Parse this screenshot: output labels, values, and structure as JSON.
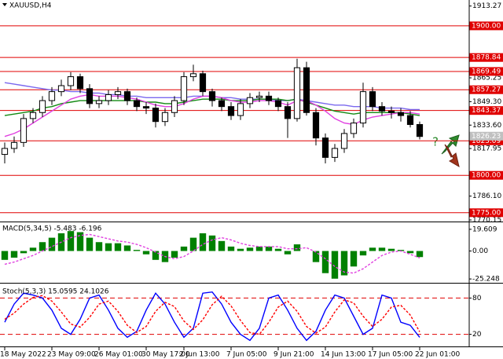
{
  "chart_data": [
    {
      "type": "candlestick",
      "title": "XAUUSD,H4",
      "categories": [
        "18 May 2022",
        null,
        null,
        null,
        null,
        "23 May 09:00",
        null,
        null,
        null,
        null,
        "26 May 01:00",
        null,
        null,
        null,
        null,
        "30 May 17:00",
        null,
        null,
        null,
        "2 Jun 13:00",
        null,
        null,
        null,
        null,
        "7 Jun 05:00",
        null,
        null,
        null,
        null,
        "9 Jun 21:00",
        null,
        null,
        null,
        null,
        "14 Jun 13:00",
        null,
        null,
        null,
        null,
        "17 Jun 05:00",
        null,
        null,
        null,
        null,
        "22 Jun 01:00"
      ],
      "open": [
        1814,
        1818,
        1822,
        1838,
        1842,
        1850,
        1856,
        1860,
        1866,
        1858,
        1848,
        1850,
        1854,
        1856,
        1850,
        1846,
        1845,
        1836,
        1842,
        1850,
        1866,
        1868,
        1856,
        1850,
        1846,
        1840,
        1848,
        1852,
        1853,
        1850,
        1846,
        1838,
        1872,
        1842,
        1825,
        1812,
        1818,
        1828,
        1835,
        1856,
        1846,
        1843,
        1842,
        1840,
        1834
      ],
      "high": [
        1822,
        1826,
        1841,
        1845,
        1853,
        1859,
        1864,
        1869,
        1868,
        1861,
        1853,
        1857,
        1859,
        1858,
        1852,
        1849,
        1848,
        1845,
        1853,
        1869,
        1874,
        1870,
        1858,
        1852,
        1849,
        1851,
        1855,
        1856,
        1856,
        1852,
        1849,
        1878,
        1876,
        1845,
        1828,
        1821,
        1831,
        1838,
        1862,
        1859,
        1849,
        1846,
        1845,
        1843,
        1836
      ],
      "low": [
        1808,
        1815,
        1819,
        1835,
        1839,
        1847,
        1853,
        1857,
        1855,
        1845,
        1845,
        1847,
        1851,
        1847,
        1843,
        1841,
        1832,
        1833,
        1839,
        1847,
        1863,
        1853,
        1846,
        1843,
        1837,
        1837,
        1845,
        1849,
        1847,
        1843,
        1825,
        1836,
        1840,
        1820,
        1808,
        1809,
        1815,
        1825,
        1832,
        1843,
        1840,
        1838,
        1836,
        1832,
        1824
      ],
      "close": [
        1818,
        1822,
        1838,
        1842,
        1850,
        1856,
        1860,
        1866,
        1858,
        1848,
        1850,
        1854,
        1856,
        1850,
        1846,
        1845,
        1836,
        1842,
        1850,
        1866,
        1868,
        1856,
        1850,
        1846,
        1840,
        1848,
        1852,
        1853,
        1850,
        1846,
        1838,
        1872,
        1842,
        1825,
        1812,
        1818,
        1828,
        1835,
        1856,
        1846,
        1843,
        1842,
        1840,
        1834,
        1826
      ],
      "series": [
        {
          "color": "#7b68ee",
          "values": [
            1862,
            1861,
            1860,
            1859,
            1858,
            1857,
            1857,
            1856,
            1856,
            1855,
            1855,
            1854,
            1854,
            1853,
            1853,
            1852,
            1852,
            1852,
            1852,
            1852,
            1853,
            1853,
            1853,
            1852,
            1852,
            1851,
            1851,
            1851,
            1851,
            1850,
            1850,
            1851,
            1850,
            1849,
            1848,
            1847,
            1847,
            1846,
            1846,
            1846,
            1845,
            1845,
            1845,
            1844,
            1844
          ]
        },
        {
          "color": "#138a13",
          "values": [
            1840,
            1841,
            1842,
            1843,
            1845,
            1846,
            1848,
            1849,
            1850,
            1850,
            1850,
            1850,
            1850,
            1850,
            1850,
            1849,
            1849,
            1848,
            1848,
            1849,
            1850,
            1851,
            1851,
            1851,
            1850,
            1850,
            1850,
            1851,
            1851,
            1851,
            1850,
            1851,
            1849,
            1847,
            1845,
            1843,
            1842,
            1841,
            1842,
            1842,
            1842,
            1842,
            1842,
            1841,
            1840
          ]
        },
        {
          "color": "#e040e0",
          "values": [
            1826,
            1828,
            1831,
            1835,
            1839,
            1843,
            1847,
            1851,
            1853,
            1854,
            1853,
            1853,
            1853,
            1852,
            1851,
            1849,
            1847,
            1846,
            1846,
            1848,
            1851,
            1853,
            1853,
            1852,
            1850,
            1849,
            1849,
            1850,
            1850,
            1849,
            1847,
            1850,
            1850,
            1847,
            1843,
            1838,
            1835,
            1834,
            1837,
            1839,
            1840,
            1841,
            1842,
            1842,
            1841
          ]
        }
      ],
      "ylim": [
        1769.1,
        1917.3
      ],
      "yticks": [
        {
          "value": 1913.27,
          "label": "1913.27"
        },
        1865.25,
        {
          "value": 1849.3,
          "label": "1849.30"
        },
        {
          "value": 1833.6,
          "label": "1833.60"
        },
        1817.95,
        {
          "value": 1786.1,
          "label": "1786.10"
        },
        1770.15
      ],
      "levels": [
        {
          "value": 1900,
          "label": "1900.00"
        },
        1878.84,
        1869.49,
        1857.27,
        1843.37,
        1823.09,
        {
          "value": 1800,
          "label": "1800.00"
        },
        {
          "value": 1775,
          "label": "1775.00"
        }
      ],
      "level_color": "#e00000",
      "current_price": 1826.23
    },
    {
      "type": "bar",
      "title": "MACD(5,34,5) -5.483 -6.196",
      "color": "#008000",
      "values": [
        -8,
        -6,
        -2,
        3,
        8,
        12,
        16,
        18,
        17,
        12,
        8,
        7,
        7,
        5,
        1,
        -3,
        -8,
        -10,
        -6,
        4,
        12,
        16,
        14,
        9,
        4,
        2,
        3,
        4,
        4,
        2,
        -3,
        6,
        0,
        -10,
        -20,
        -25,
        -22,
        -14,
        -4,
        3,
        3,
        2,
        1,
        -2,
        -5.483
      ],
      "series": [
        {
          "color": "#e040e0",
          "style": "dashed",
          "values": [
            -12,
            -10,
            -7,
            -4,
            0,
            4,
            8,
            12,
            14,
            15,
            13,
            11,
            9,
            8,
            6,
            3,
            -1,
            -5,
            -7,
            -5,
            0,
            6,
            10,
            12,
            10,
            7,
            5,
            4,
            4,
            4,
            2,
            2,
            3,
            -1,
            -7,
            -14,
            -19,
            -20,
            -16,
            -10,
            -4,
            -1,
            0,
            -3,
            -6.196
          ]
        }
      ],
      "ylim": [
        -27.3,
        25.2
      ],
      "yticks": [
        19.609,
        {
          "value": 0,
          "label": "0.00"
        },
        -25.248
      ]
    },
    {
      "type": "line",
      "title": "Stoch(5,3,3) 15.0595 24.1026",
      "series": [
        {
          "color": "#0000ff",
          "values": [
            40,
            70,
            88,
            85,
            80,
            60,
            30,
            20,
            45,
            80,
            85,
            60,
            30,
            15,
            25,
            60,
            88,
            70,
            40,
            15,
            30,
            88,
            90,
            70,
            40,
            20,
            10,
            30,
            80,
            85,
            60,
            30,
            10,
            25,
            60,
            85,
            80,
            50,
            20,
            30,
            85,
            80,
            40,
            35,
            15.0595
          ]
        },
        {
          "color": "#ff0000",
          "style": "dashed",
          "values": [
            45,
            55,
            70,
            81,
            84,
            75,
            57,
            37,
            32,
            48,
            70,
            75,
            58,
            35,
            23,
            33,
            58,
            73,
            66,
            42,
            28,
            44,
            69,
            83,
            67,
            43,
            23,
            20,
            40,
            65,
            75,
            58,
            33,
            22,
            32,
            57,
            77,
            72,
            50,
            33,
            45,
            65,
            68,
            52,
            24.1026
          ]
        }
      ],
      "ylim": [
        0,
        100
      ],
      "yticks": [
        80,
        20
      ],
      "grid": true,
      "grid_color": "#e00000"
    }
  ]
}
